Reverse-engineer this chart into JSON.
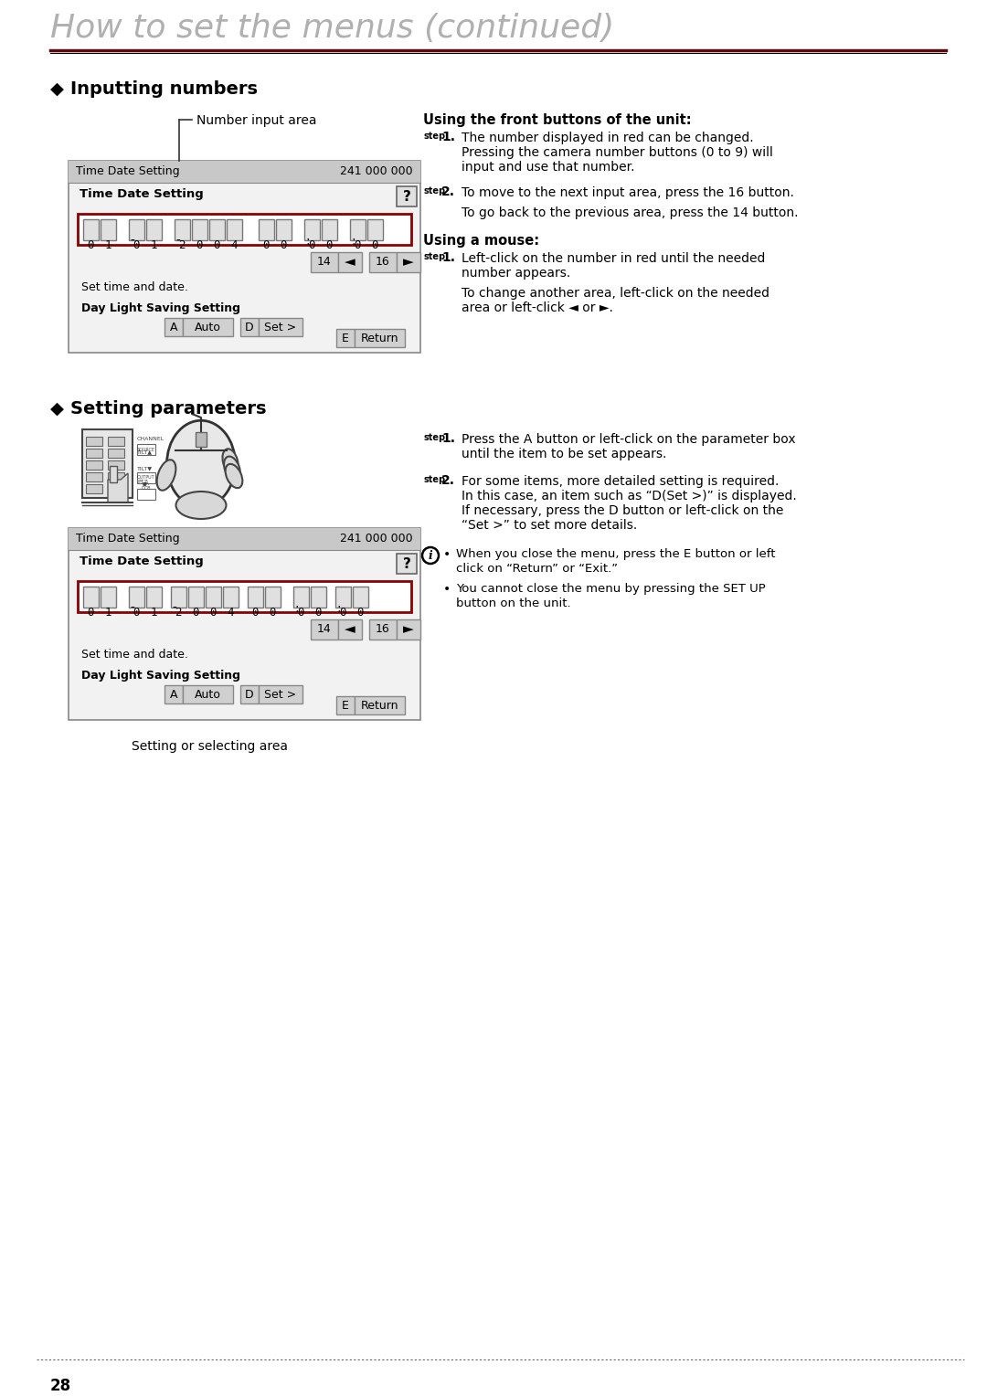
{
  "title": "How to set the menus (continued)",
  "page_number": "28",
  "background_color": "#ffffff",
  "title_color": "#b0b0b0",
  "section1_header": "Inputting numbers",
  "section2_header": "Setting parameters",
  "callout_label": "Number input area",
  "setting_callout": "Setting or selecting area",
  "dialog_title": "Time Date Setting",
  "dialog_number": "241 000 000",
  "dialog_subtitle": "Time Date Setting",
  "dialog_desc1": "Set time and date.",
  "dialog_desc2": "Day Light Saving Setting",
  "using_front_title": "Using the front buttons of the unit:",
  "step1_front_1": "The number displayed in red can be changed.",
  "step1_front_2": "Pressing the camera number buttons (0 to 9) will",
  "step1_front_3": "input and use that number.",
  "step2_front": "To move to the next input area, press the 16 button.",
  "step2b_front": "To go back to the previous area, press the 14 button.",
  "using_mouse_title": "Using a mouse:",
  "step1_mouse_1": "Left-click on the number in red until the needed",
  "step1_mouse_2": "number appears.",
  "step1b_mouse_1": "To change another area, left-click on the needed",
  "step1b_mouse_2": "area or left-click ◄ or ►.",
  "step1_setting_1": "Press the A button or left-click on the parameter box",
  "step1_setting_2": "until the item to be set appears.",
  "step2_setting_1": "For some items, more detailed setting is required.",
  "step2_setting_2": "In this case, an item such as “D(Set >)” is displayed.",
  "step2_setting_3": "If necessary, press the D button or left-click on the",
  "step2_setting_4": "“Set >” to set more details.",
  "note1_1": "When you close the menu, press the E button or left",
  "note1_2": "click on “Return” or “Exit.”",
  "note2_1": "You cannot close the menu by pressing the SET UP",
  "note2_2": "button on the unit.",
  "header_line_color": "#222222",
  "dot_line_color": "#666666",
  "dialog_bg_header": "#c8c8c8",
  "dialog_bg_body": "#f2f2f2",
  "dialog_border": "#888888",
  "red_border": "#8b0000",
  "digit_box_bg": "#e0e0e0",
  "btn_bg": "#d0d0d0",
  "qmark_bg": "#e0e0e0"
}
